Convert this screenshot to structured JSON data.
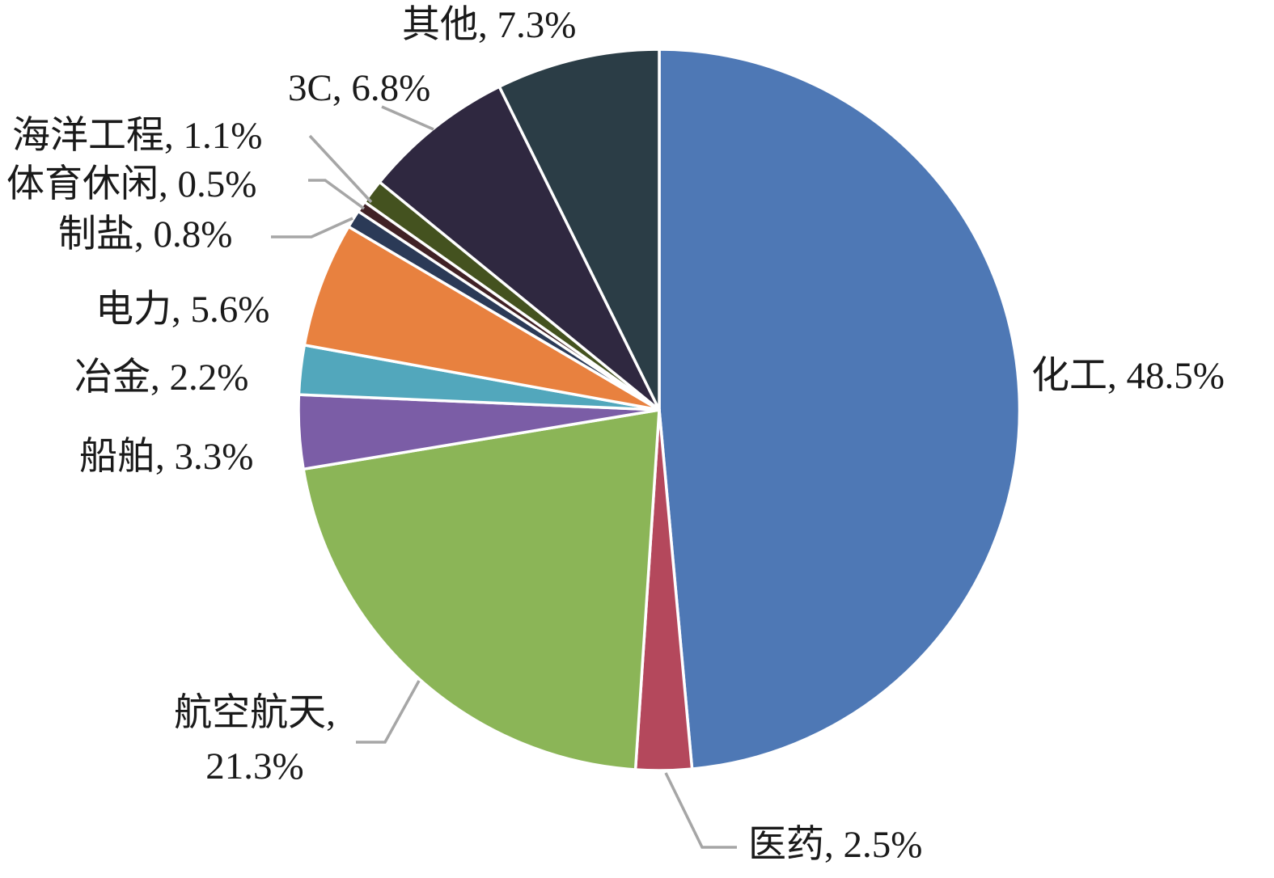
{
  "chart_data": {
    "type": "pie",
    "title": "",
    "unit": "%",
    "start_angle_deg": 0,
    "direction": "clockwise",
    "legend": "none",
    "labels_outside": true,
    "categories": [
      "化工",
      "医药",
      "航空航天",
      "船舶",
      "冶金",
      "电力",
      "制盐",
      "体育休闲",
      "海洋工程",
      "3C",
      "其他"
    ],
    "values": [
      48.5,
      2.5,
      21.3,
      3.3,
      2.2,
      5.6,
      0.8,
      0.5,
      1.1,
      6.8,
      7.3
    ],
    "ids": [
      "chemical",
      "pharma",
      "aerospace",
      "shipbuilding",
      "metallurgy",
      "power",
      "salt",
      "sports-leisure",
      "marine-engineering",
      "3c",
      "other"
    ],
    "colors": [
      "#4E78B5",
      "#B4485C",
      "#8BB557",
      "#7B5DA6",
      "#52A7BC",
      "#E8813F",
      "#2B3A57",
      "#402125",
      "#44521F",
      "#2F2840",
      "#2B3D46"
    ],
    "styles": {
      "slice_border_color": "#FFFFFF",
      "leader_line_color": "#A6A6A6",
      "text_color": "#1A1A1A",
      "background": "#FFFFFF"
    },
    "slice_labels": [
      {
        "text": "化工, 48.5%"
      },
      {
        "text": "医药, 2.5%"
      },
      {
        "text": "航空航天, 21.3%",
        "line1": "航空航天,",
        "line2": "21.3%"
      },
      {
        "text": "船舶, 3.3%"
      },
      {
        "text": "冶金, 2.2%"
      },
      {
        "text": "电力, 5.6%"
      },
      {
        "text": "制盐, 0.8%"
      },
      {
        "text": "体育休闲, 0.5%"
      },
      {
        "text": "海洋工程, 1.1%"
      },
      {
        "text": "3C, 6.8%"
      },
      {
        "text": "其他, 7.3%"
      }
    ]
  }
}
